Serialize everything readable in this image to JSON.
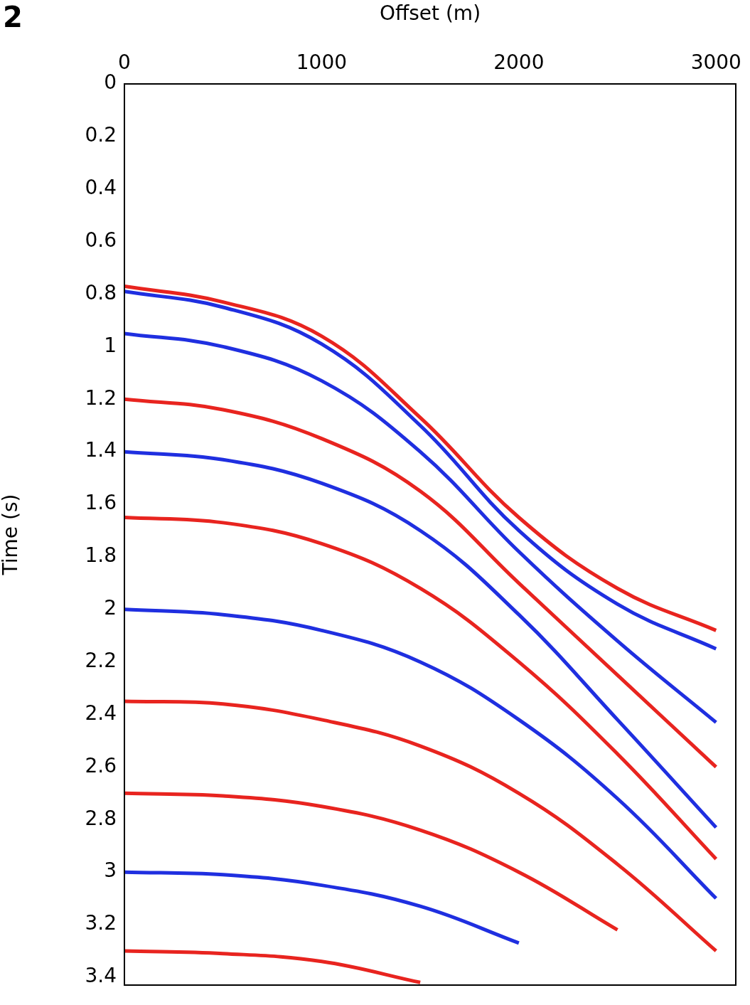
{
  "chart_data": {
    "type": "line",
    "panel_label": "2",
    "x_label": "Offset (m)",
    "y_label": "Time (s)",
    "x": [
      0,
      500,
      1000,
      1500,
      2000,
      2500,
      3000
    ],
    "series": [
      {
        "color": "#e8241f",
        "values": [
          0.77,
          0.83,
          0.96,
          1.27,
          1.65,
          1.92,
          2.08
        ]
      },
      {
        "color": "#1f2fe0",
        "values": [
          0.79,
          0.85,
          0.99,
          1.3,
          1.7,
          1.98,
          2.15
        ]
      },
      {
        "color": "#1f2fe0",
        "values": [
          0.95,
          1.0,
          1.13,
          1.4,
          1.78,
          2.12,
          2.43
        ]
      },
      {
        "color": "#e8241f",
        "values": [
          1.2,
          1.24,
          1.35,
          1.55,
          1.9,
          2.25,
          2.6
        ]
      },
      {
        "color": "#1f2fe0",
        "values": [
          1.4,
          1.43,
          1.52,
          1.7,
          2.02,
          2.42,
          2.83
        ]
      },
      {
        "color": "#e8241f",
        "values": [
          1.65,
          1.67,
          1.75,
          1.92,
          2.2,
          2.55,
          2.95
        ]
      },
      {
        "color": "#1f2fe0",
        "values": [
          2.0,
          2.02,
          2.08,
          2.2,
          2.42,
          2.72,
          3.1
        ]
      },
      {
        "color": "#e8241f",
        "values": [
          2.35,
          2.36,
          2.42,
          2.52,
          2.7,
          2.97,
          3.3
        ]
      },
      {
        "color": "#e8241f",
        "values": [
          2.7,
          2.71,
          2.75,
          2.84,
          3.0,
          3.22,
          null
        ]
      },
      {
        "color": "#1f2fe0",
        "values": [
          3.0,
          3.01,
          3.05,
          3.13,
          3.27,
          null,
          null
        ]
      },
      {
        "color": "#e8241f",
        "values": [
          3.3,
          3.31,
          3.34,
          3.42,
          null,
          null,
          null
        ]
      }
    ],
    "xlim": [
      0,
      3100
    ],
    "xticks": [
      0,
      1000,
      2000,
      3000
    ],
    "ylim": [
      0,
      3.43
    ],
    "yticks": [
      0,
      0.2,
      0.4,
      0.6,
      0.8,
      1,
      1.2,
      1.4,
      1.6,
      1.8,
      2,
      2.2,
      2.4,
      2.6,
      2.8,
      3,
      3.2,
      3.4
    ],
    "grid": false
  }
}
